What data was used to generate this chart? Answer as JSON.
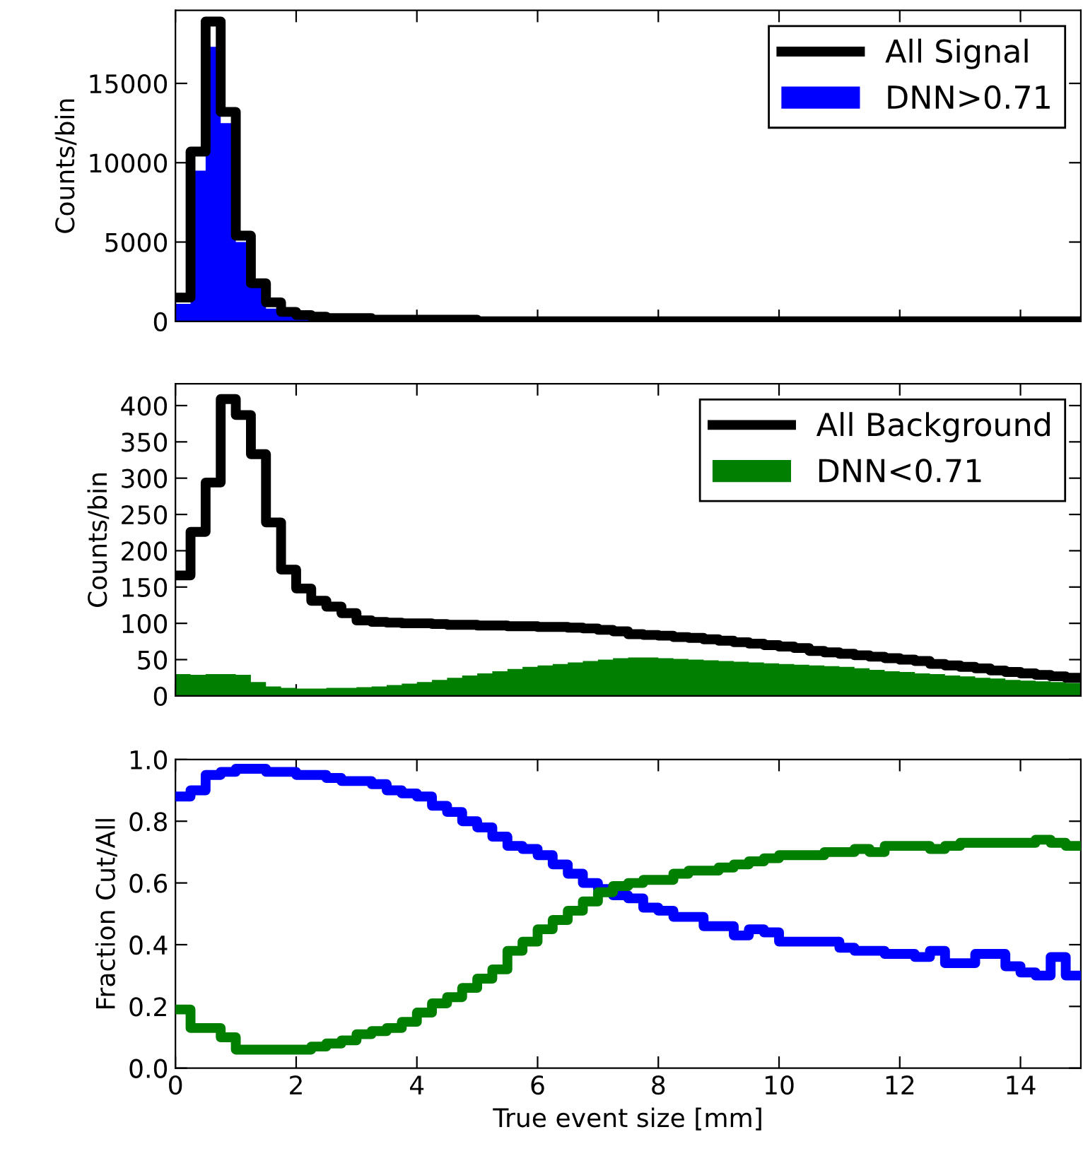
{
  "chart_data": [
    {
      "type": "histogram",
      "ylabel": "Counts/bin",
      "legend": "top right",
      "grid": false,
      "tick_labels": "y",
      "bins": [
        0,
        0.25,
        0.5,
        0.75,
        1,
        1.25,
        1.5,
        1.75,
        2,
        2.25,
        2.5,
        2.75,
        3,
        3.25,
        3.5,
        3.75,
        4,
        4.25,
        4.5,
        4.75,
        5,
        5.25,
        5.5,
        5.75,
        6,
        6.25,
        6.5,
        6.75,
        7,
        7.25,
        7.5,
        7.75,
        8,
        8.25,
        8.5,
        8.75,
        9,
        9.25,
        9.5,
        9.75,
        10,
        10.25,
        10.5,
        10.75,
        11,
        11.25,
        11.5,
        11.75,
        12,
        12.25,
        12.5,
        12.75,
        13,
        13.25,
        13.5,
        13.75,
        14,
        14.25,
        14.5,
        14.75,
        15
      ],
      "xlim": [
        0,
        15
      ],
      "xticks": [
        0,
        2,
        4,
        6,
        8,
        10,
        12,
        14
      ],
      "ylim": [
        0,
        19600
      ],
      "yticks": [
        0,
        5000,
        10000,
        15000
      ],
      "series": [
        {
          "name": "All Signal",
          "type": "step",
          "color": "#000000",
          "x": [
            0,
            0.25,
            0.5,
            0.75,
            1,
            1.25,
            1.5,
            1.75,
            2,
            2.25,
            2.5,
            2.75,
            3,
            3.25,
            3.5,
            3.75,
            4,
            4.25,
            4.5,
            4.75,
            5,
            5.25,
            5.5,
            5.75,
            6,
            6.25,
            6.5,
            6.75,
            7,
            7.25,
            7.5,
            7.75,
            8,
            8.25,
            8.5,
            8.75,
            9,
            9.25,
            9.5,
            9.75,
            10,
            10.25,
            10.5,
            10.75,
            11,
            11.25,
            11.5,
            11.75,
            12,
            12.25,
            12.5,
            12.75,
            13,
            13.25,
            13.5,
            13.75,
            14,
            14.25,
            14.5,
            14.75,
            15
          ],
          "values": [
            1500,
            10700,
            18900,
            13200,
            5400,
            2400,
            1200,
            600,
            400,
            300,
            200,
            200,
            200,
            100,
            100,
            100,
            100,
            100,
            100,
            100,
            0,
            0,
            0,
            0,
            0,
            0,
            0,
            0,
            0,
            0,
            0,
            0,
            0,
            0,
            0,
            0,
            0,
            0,
            0,
            0,
            0,
            0,
            0,
            0,
            0,
            0,
            0,
            0,
            0,
            0,
            0,
            0,
            0,
            0,
            0,
            0,
            0,
            0,
            0,
            0,
            0
          ]
        },
        {
          "name": "DNN>0.71",
          "color": "#0000ff",
          "values": [
            1100,
            9500,
            17300,
            12500,
            5000,
            2300,
            800,
            300,
            200,
            100,
            100,
            0,
            0,
            0,
            0,
            0,
            0,
            0,
            0,
            0,
            0,
            0,
            0,
            0,
            0,
            0,
            0,
            0,
            0,
            0,
            0,
            0,
            0,
            0,
            0,
            0,
            0,
            0,
            0,
            0,
            0,
            0,
            0,
            0,
            0,
            0,
            0,
            0,
            0,
            0,
            0,
            0,
            0,
            0,
            0,
            0,
            0,
            0,
            0,
            0
          ]
        }
      ]
    },
    {
      "type": "histogram",
      "ylabel": "Counts/bin",
      "legend": "top right",
      "grid": false,
      "tick_labels": "y",
      "bins": [
        0,
        0.25,
        0.5,
        0.75,
        1,
        1.25,
        1.5,
        1.75,
        2,
        2.25,
        2.5,
        2.75,
        3,
        3.25,
        3.5,
        3.75,
        4,
        4.25,
        4.5,
        4.75,
        5,
        5.25,
        5.5,
        5.75,
        6,
        6.25,
        6.5,
        6.75,
        7,
        7.25,
        7.5,
        7.75,
        8,
        8.25,
        8.5,
        8.75,
        9,
        9.25,
        9.5,
        9.75,
        10,
        10.25,
        10.5,
        10.75,
        11,
        11.25,
        11.5,
        11.75,
        12,
        12.25,
        12.5,
        12.75,
        13,
        13.25,
        13.5,
        13.75,
        14,
        14.25,
        14.5,
        14.75,
        15
      ],
      "xlim": [
        0,
        15
      ],
      "xticks": [
        0,
        2,
        4,
        6,
        8,
        10,
        12,
        14
      ],
      "ylim": [
        0,
        430
      ],
      "yticks": [
        0,
        50,
        100,
        150,
        200,
        250,
        300,
        350,
        400
      ],
      "series": [
        {
          "name": "All Background",
          "type": "step",
          "color": "#000000",
          "x": [
            0,
            0.25,
            0.5,
            0.75,
            1,
            1.25,
            1.5,
            1.75,
            2,
            2.25,
            2.5,
            2.75,
            3,
            3.25,
            3.5,
            3.75,
            4,
            4.25,
            4.5,
            4.75,
            5,
            5.25,
            5.5,
            5.75,
            6,
            6.25,
            6.5,
            6.75,
            7,
            7.25,
            7.5,
            7.75,
            8,
            8.25,
            8.5,
            8.75,
            9,
            9.25,
            9.5,
            9.75,
            10,
            10.25,
            10.5,
            10.75,
            11,
            11.25,
            11.5,
            11.75,
            12,
            12.25,
            12.5,
            12.75,
            13,
            13.25,
            13.5,
            13.75,
            14,
            14.25,
            14.5,
            14.75,
            15
          ],
          "values": [
            166,
            226,
            294,
            409,
            387,
            333,
            239,
            174,
            148,
            131,
            123,
            114,
            104,
            102,
            101,
            100,
            100,
            99,
            98,
            98,
            97,
            97,
            96,
            96,
            95,
            95,
            94,
            93,
            91,
            89,
            85,
            84,
            83,
            81,
            80,
            78,
            76,
            74,
            72,
            70,
            68,
            66,
            62,
            60,
            58,
            56,
            54,
            52,
            50,
            48,
            44,
            42,
            40,
            38,
            35,
            33,
            31,
            29,
            27,
            25,
            25
          ]
        },
        {
          "name": "DNN<0.71",
          "color": "#007f00",
          "values": [
            30,
            29,
            30,
            30,
            29,
            19,
            13,
            11,
            10,
            10,
            11,
            11,
            12,
            13,
            15,
            17,
            19,
            22,
            25,
            28,
            31,
            34,
            37,
            40,
            42,
            44,
            46,
            48,
            50,
            52,
            53,
            53,
            52,
            51,
            50,
            49,
            48,
            47,
            46,
            45,
            44,
            43,
            42,
            41,
            40,
            38,
            36,
            34,
            33,
            31,
            30,
            28,
            27,
            25,
            24,
            22,
            21,
            20,
            19,
            18
          ]
        }
      ]
    },
    {
      "type": "step",
      "xlabel": "True event size [mm]",
      "ylabel": "Fraction Cut/All",
      "grid": false,
      "x": [
        0,
        0.25,
        0.5,
        0.75,
        1,
        1.25,
        1.5,
        1.75,
        2,
        2.25,
        2.5,
        2.75,
        3,
        3.25,
        3.5,
        3.75,
        4,
        4.25,
        4.5,
        4.75,
        5,
        5.25,
        5.5,
        5.75,
        6,
        6.25,
        6.5,
        6.75,
        7,
        7.25,
        7.5,
        7.75,
        8,
        8.25,
        8.5,
        8.75,
        9,
        9.25,
        9.5,
        9.75,
        10,
        10.25,
        10.5,
        10.75,
        11,
        11.25,
        11.5,
        11.75,
        12,
        12.25,
        12.5,
        12.75,
        13,
        13.25,
        13.5,
        13.75,
        14,
        14.25,
        14.5,
        14.75,
        15
      ],
      "xlim": [
        0,
        15
      ],
      "xticks": [
        0,
        2,
        4,
        6,
        8,
        10,
        12,
        14
      ],
      "ylim": [
        0,
        1
      ],
      "yticks": [
        {
          "value": 0,
          "label": "0.0"
        },
        {
          "value": 0.2,
          "label": "0.2"
        },
        {
          "value": 0.4,
          "label": "0.4"
        },
        {
          "value": 0.6,
          "label": "0.6"
        },
        {
          "value": 0.8,
          "label": "0.8"
        },
        {
          "value": 1,
          "label": "1.0"
        }
      ],
      "series": [
        {
          "color": "#0000ff",
          "values": [
            0.88,
            0.9,
            0.95,
            0.96,
            0.97,
            0.97,
            0.96,
            0.96,
            0.95,
            0.95,
            0.94,
            0.93,
            0.93,
            0.92,
            0.9,
            0.89,
            0.88,
            0.85,
            0.83,
            0.8,
            0.78,
            0.75,
            0.72,
            0.71,
            0.69,
            0.66,
            0.63,
            0.6,
            0.58,
            0.56,
            0.55,
            0.52,
            0.51,
            0.49,
            0.49,
            0.46,
            0.46,
            0.43,
            0.45,
            0.44,
            0.41,
            0.41,
            0.41,
            0.41,
            0.39,
            0.38,
            0.38,
            0.37,
            0.37,
            0.36,
            0.38,
            0.34,
            0.34,
            0.37,
            0.37,
            0.33,
            0.31,
            0.3,
            0.36,
            0.3,
            0.3
          ]
        },
        {
          "color": "#007f00",
          "values": [
            0.19,
            0.13,
            0.13,
            0.1,
            0.06,
            0.06,
            0.06,
            0.06,
            0.06,
            0.07,
            0.08,
            0.09,
            0.11,
            0.12,
            0.13,
            0.15,
            0.18,
            0.21,
            0.23,
            0.26,
            0.29,
            0.32,
            0.38,
            0.41,
            0.45,
            0.48,
            0.51,
            0.54,
            0.57,
            0.59,
            0.6,
            0.61,
            0.61,
            0.63,
            0.64,
            0.64,
            0.65,
            0.66,
            0.67,
            0.68,
            0.69,
            0.69,
            0.69,
            0.7,
            0.7,
            0.71,
            0.7,
            0.72,
            0.72,
            0.72,
            0.71,
            0.72,
            0.73,
            0.73,
            0.73,
            0.73,
            0.73,
            0.74,
            0.73,
            0.72,
            0.72
          ]
        }
      ]
    }
  ]
}
